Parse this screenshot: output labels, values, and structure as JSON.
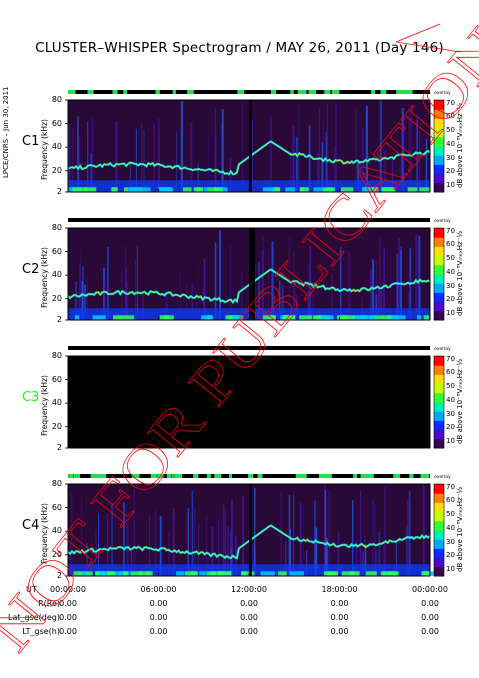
{
  "title": "CLUSTER–WHISPER Spectrogram / MAY 26, 2011 (Day 146)",
  "side_label": "LPCE/CNRS – Jun 30, 2011",
  "stamp_text": "NOT FOR PUBLICATION",
  "chart_data": {
    "type": "heatmap",
    "panels": [
      {
        "name": "C1",
        "ylabel": "Frequency (kHz)",
        "yticks": [
          2,
          20,
          40,
          60,
          80
        ],
        "ylim": [
          2,
          80
        ],
        "has_data": true
      },
      {
        "name": "C2",
        "ylabel": "Frequency (kHz)",
        "yticks": [
          2,
          20,
          40,
          60,
          80
        ],
        "ylim": [
          2,
          80
        ],
        "has_data": true
      },
      {
        "name": "C3",
        "ylabel": "Frequency (kHz)",
        "yticks": [
          2,
          20,
          40,
          60,
          80
        ],
        "ylim": [
          2,
          80
        ],
        "has_data": false
      },
      {
        "name": "C4",
        "ylabel": "Frequency (kHz)",
        "yticks": [
          2,
          20,
          40,
          60,
          80
        ],
        "ylim": [
          2,
          80
        ],
        "has_data": true
      }
    ],
    "colorbar": {
      "ticks": [
        10,
        20,
        30,
        40,
        50,
        60,
        70
      ],
      "range": [
        5,
        72
      ],
      "label": "dB above 10⁻⁸VₘₑₓHz⁻½",
      "tag": "overlay",
      "colors": [
        "#3b0050",
        "#4a0ad0",
        "#0a2cff",
        "#00a8ff",
        "#00f0b0",
        "#30ff30",
        "#c8ff00",
        "#ffe000",
        "#ff8000",
        "#ff0000"
      ]
    },
    "x_axis": {
      "label": "UT",
      "ticks": [
        "00:00:00",
        "06:00:00",
        "12:00:00",
        "18:00:00",
        "00:00:00"
      ]
    },
    "ephemeris": [
      {
        "label": "R(Re)",
        "values": [
          "0.00",
          "0.00",
          "0.00",
          "0.00",
          "0.00"
        ]
      },
      {
        "label": "Lat_gse(deg)",
        "values": [
          "0.00",
          "0.00",
          "0.00",
          "0.00",
          "0.00"
        ]
      },
      {
        "label": "LT_gse(h)",
        "values": [
          "0.00",
          "0.00",
          "0.00",
          "0.00",
          "0.00"
        ]
      }
    ]
  },
  "colors": {
    "c3_label": "#1aff1a",
    "stamp": "#ff0000",
    "mode_bar_green": "#22dd55"
  }
}
